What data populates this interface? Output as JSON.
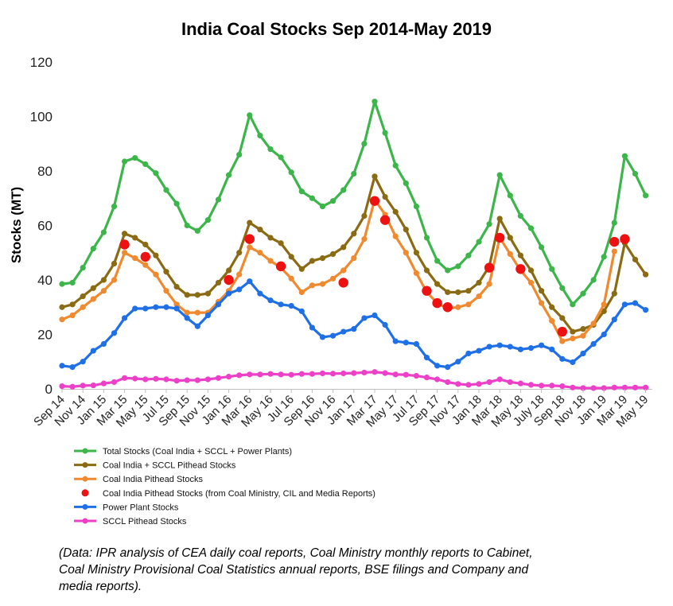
{
  "chart_data": {
    "type": "line",
    "title": "India Coal Stocks Sep 2014-May 2019",
    "ylabel": "Stocks (MT)",
    "ylim": [
      0,
      120
    ],
    "yticks": [
      "0",
      "20",
      "40",
      "60",
      "80",
      "100",
      "120"
    ],
    "grid": false,
    "legend_position": "bottom-left",
    "x_tick_labels": [
      "Sep 14",
      "Nov 14",
      "Jan 15",
      "Mar 15",
      "May 15",
      "Jul 15",
      "Sep 15",
      "Nov 15",
      "Jan 16",
      "Mar 16",
      "May 16",
      "Jul 16",
      "Sep 16",
      "Nov 16",
      "Jan 17",
      "Mar 17",
      "May 17",
      "Jul 17",
      "Sep 17",
      "Nov 17",
      "Jan 18",
      "Mar 18",
      "May 18",
      "July 18",
      "Sep 18",
      "Nov 18",
      "Jan 19",
      "Mar 19",
      "May 19"
    ],
    "series": [
      {
        "name": "Total Stocks (Coal India + SCCL + Power Plants)",
        "color": "#3cb54a",
        "marker": "line",
        "values": [
          38.5,
          39,
          44.5,
          51.5,
          57.5,
          67,
          83.5,
          84.8,
          82.5,
          79.2,
          73,
          68,
          60,
          58,
          62,
          69.5,
          78.5,
          86,
          100.5,
          93,
          88,
          85,
          79.5,
          72.5,
          70,
          67,
          69,
          73,
          79,
          90,
          105.5,
          94,
          82,
          75.5,
          67,
          55.5,
          47,
          43.5,
          45,
          49,
          54,
          60.5,
          78.5,
          71,
          63.5,
          59,
          52,
          44,
          37,
          31,
          35,
          40,
          48.5,
          61,
          85.5,
          79,
          71
        ]
      },
      {
        "name": "Coal India + SCCL Pithead Stocks",
        "color": "#8a6a12",
        "marker": "line",
        "values": [
          30,
          31,
          34,
          37,
          40,
          46,
          57,
          55.5,
          53,
          49,
          43,
          37.5,
          34.5,
          34.5,
          35,
          39,
          43.5,
          50,
          61,
          58.5,
          55.5,
          53.5,
          48.5,
          44,
          47,
          48,
          49.5,
          52,
          57,
          63.5,
          78,
          70.5,
          65,
          58.5,
          50,
          43.5,
          38.5,
          35.5,
          35.5,
          36,
          39,
          45,
          62.5,
          55.5,
          49,
          43.5,
          36,
          30,
          26,
          21,
          22,
          23.5,
          28.5,
          35,
          53.5,
          47.5,
          42
        ]
      },
      {
        "name": "Coal India Pithead Stocks",
        "color": "#f08a30",
        "marker": "line",
        "values": [
          25.5,
          27,
          30,
          33,
          36,
          40,
          50,
          48,
          45.5,
          42,
          36,
          31,
          28,
          28,
          28,
          32,
          36,
          42,
          52,
          50,
          47,
          44.5,
          40.5,
          35.5,
          38,
          38.5,
          40.5,
          43.5,
          48,
          55,
          69.5,
          64,
          56,
          50,
          42.5,
          35.5,
          31.5,
          29.5,
          30,
          31,
          34,
          38.5,
          55.5,
          49.5,
          43.5,
          39,
          31.5,
          25,
          17.5,
          18.5,
          19.5,
          24,
          31,
          50.5,
          null,
          null,
          null
        ]
      },
      {
        "name": "Coal India Pithead Stocks (from Coal Ministry, CIL and Media Reports)",
        "color": "#ee1111",
        "marker": "dot",
        "points": [
          [
            6,
            53
          ],
          [
            8,
            48.5
          ],
          [
            16,
            40
          ],
          [
            18,
            55
          ],
          [
            21,
            45
          ],
          [
            27,
            39
          ],
          [
            30,
            69
          ],
          [
            31,
            62
          ],
          [
            35,
            36
          ],
          [
            36,
            31.5
          ],
          [
            37,
            30
          ],
          [
            41,
            44.5
          ],
          [
            42,
            55.5
          ],
          [
            44,
            44
          ],
          [
            48,
            21
          ],
          [
            53,
            54
          ],
          [
            54,
            55
          ]
        ]
      },
      {
        "name": "Power Plant Stocks",
        "color": "#1f6fe6",
        "marker": "line",
        "values": [
          8.5,
          8,
          10,
          14,
          16.5,
          20.5,
          26,
          29.5,
          29.5,
          30,
          30,
          29.5,
          26,
          23,
          27,
          31,
          35,
          36.5,
          39.5,
          35,
          32.5,
          31,
          30.5,
          28.5,
          22.5,
          19,
          19.5,
          21,
          22,
          26,
          27,
          23.5,
          17.5,
          17,
          16.5,
          11.5,
          8.5,
          8,
          10,
          13,
          14,
          15.5,
          16,
          15.5,
          14.5,
          15,
          16,
          14.5,
          11,
          9.8,
          13,
          16.5,
          20,
          25.5,
          31,
          31.5,
          29
        ]
      },
      {
        "name": "SCCL Pithead Stocks",
        "color": "#ec40c8",
        "marker": "line",
        "values": [
          1,
          0.8,
          1.2,
          1.3,
          2,
          2.5,
          4,
          3.8,
          3.5,
          3.7,
          3.5,
          3,
          3.2,
          3.2,
          3.5,
          4,
          4.5,
          5,
          5.3,
          5.3,
          5.5,
          5.3,
          5.2,
          5.5,
          5.5,
          5.7,
          5.6,
          5.7,
          5.8,
          6,
          6.2,
          5.8,
          5.3,
          5.2,
          4.8,
          4.2,
          3.5,
          2.5,
          1.8,
          1.5,
          1.8,
          2.5,
          3.5,
          2.5,
          2,
          1.5,
          1.2,
          1.2,
          1,
          0.5,
          0.3,
          0.3,
          0.3,
          0.5,
          0.5,
          0.5,
          0.5
        ]
      }
    ]
  },
  "footnote": {
    "lines": [
      "(Data: IPR analysis of CEA daily coal reports, Coal Ministry monthly reports to Cabinet,",
      "Coal Ministry Provisional Coal Statistics  annual reports, BSE filings and Company and",
      "media reports)."
    ]
  }
}
